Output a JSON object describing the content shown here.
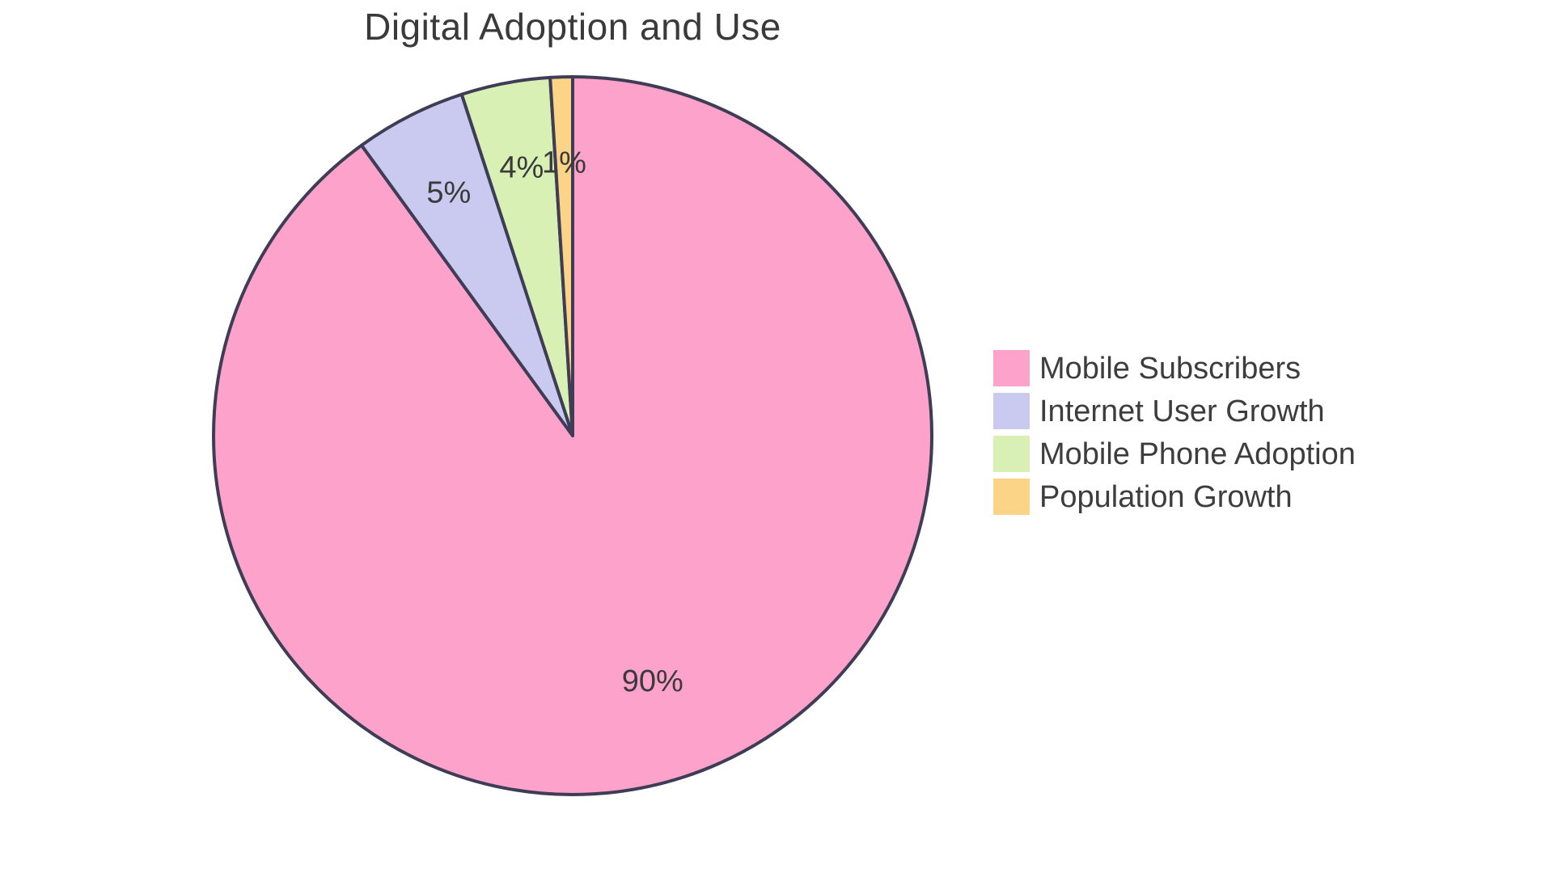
{
  "chart_data": {
    "type": "pie",
    "title": "Digital Adoption and Use",
    "slices": [
      {
        "label": "Mobile Subscribers",
        "value": 90,
        "display": "90%",
        "color": "#FCA2CB"
      },
      {
        "label": "Internet User Growth",
        "value": 5,
        "display": "5%",
        "color": "#CACAF0"
      },
      {
        "label": "Mobile Phone Adoption",
        "value": 4,
        "display": "4%",
        "color": "#D8F0B4"
      },
      {
        "label": "Population Growth",
        "value": 1,
        "display": "1%",
        "color": "#FBD488"
      }
    ],
    "start_angle": "12 o'clock",
    "direction": "clockwise",
    "legend_position": "right",
    "border_color": "#3F3D56",
    "border_width": 4,
    "label_color": "#3A3A3A",
    "title_color": "#3A3A3A",
    "legend_text_color": "#3D3D3D",
    "background": "#FFFFFF"
  }
}
